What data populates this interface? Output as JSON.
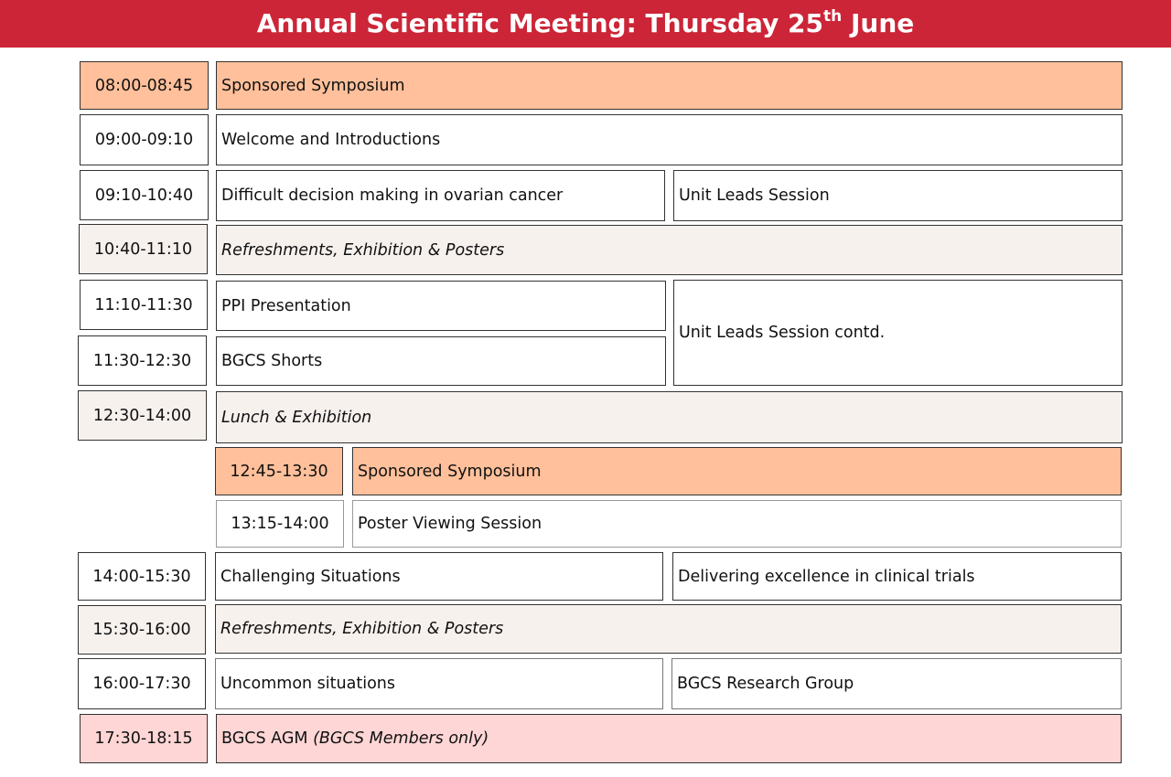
{
  "header": {
    "title_main": "Annual Scientific Meeting: Thursday 25",
    "title_sup": "th",
    "title_end": " June"
  },
  "colors": {
    "header": "#cc2537",
    "sponsored": "#ffc09b",
    "break": "#f7f1ee",
    "agm": "#ffd6d6"
  },
  "rows": [
    {
      "time": "08:00-08:45",
      "sessions": [
        "Sponsored Symposium"
      ]
    },
    {
      "time": "09:00-09:10",
      "sessions": [
        "Welcome and Introductions"
      ]
    },
    {
      "time": "09:10-10:40",
      "sessions": [
        "Difficult decision making in ovarian cancer",
        "Unit Leads Session"
      ]
    },
    {
      "time": "10:40-11:10",
      "sessions": [
        "Refreshments, Exhibition & Posters"
      ]
    },
    {
      "time": "11:10-11:30",
      "sessions": [
        "PPI Presentation",
        "Unit Leads Session contd."
      ]
    },
    {
      "time": "11:30-12:30",
      "sessions": [
        "BGCS Shorts"
      ]
    },
    {
      "time": "12:30-14:00",
      "sessions": [
        "Lunch & Exhibition"
      ]
    },
    {
      "time": "12:45-13:30",
      "sessions": [
        "Sponsored Symposium"
      ]
    },
    {
      "time": "13:15-14:00",
      "sessions": [
        "Poster Viewing Session"
      ]
    },
    {
      "time": "14:00-15:30",
      "sessions": [
        "Challenging Situations",
        "Delivering excellence in clinical trials"
      ]
    },
    {
      "time": "15:30-16:00",
      "sessions": [
        "Refreshments, Exhibition & Posters"
      ]
    },
    {
      "time": "16:00-17:30",
      "sessions": [
        "Uncommon situations",
        "BGCS Research Group"
      ]
    },
    {
      "time": "17:30-18:15",
      "sessions": [
        "BGCS AGM"
      ],
      "note": "(BGCS Members only)"
    }
  ]
}
